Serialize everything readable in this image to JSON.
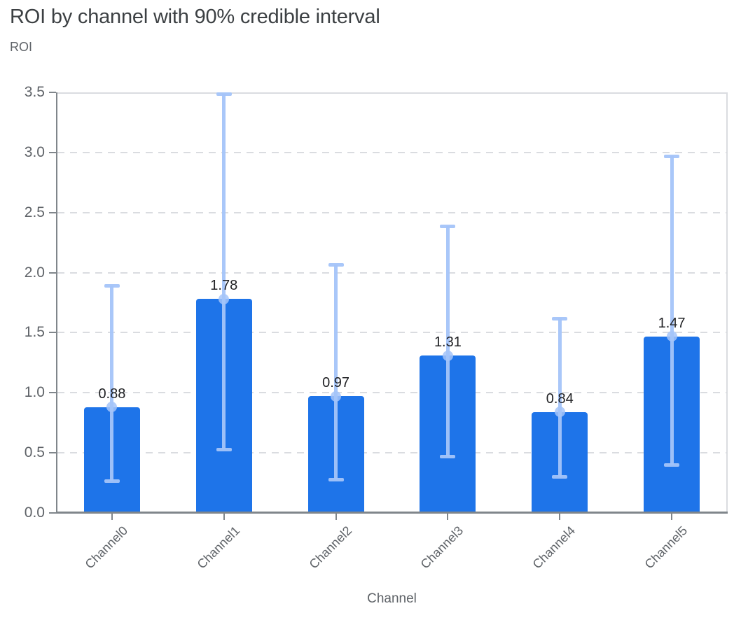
{
  "chart_data": {
    "type": "bar",
    "title": "ROI by channel with 90% credible interval",
    "ylabel": "ROI",
    "xlabel": "Channel",
    "categories": [
      "Channel0",
      "Channel1",
      "Channel2",
      "Channel3",
      "Channel4",
      "Channel5"
    ],
    "series": [
      {
        "name": "ROI",
        "values": [
          0.88,
          1.78,
          0.97,
          1.31,
          0.84,
          1.47
        ]
      }
    ],
    "bar_value_labels": [
      "0.88",
      "1.78",
      "0.97",
      "1.31",
      "0.84",
      "1.47"
    ],
    "error_bars": {
      "label": "90% credible interval",
      "lower": [
        0.27,
        0.53,
        0.28,
        0.47,
        0.3,
        0.4
      ],
      "upper": [
        1.89,
        3.49,
        2.07,
        2.39,
        1.62,
        2.97
      ]
    },
    "ytick_labels": [
      "0.0",
      "0.5",
      "1.0",
      "1.5",
      "2.0",
      "2.5",
      "3.0",
      "3.5"
    ],
    "ylim": [
      0,
      3.5
    ],
    "grid": "horizontal-dashed",
    "legend": "none",
    "colors": {
      "bar": "#1e74e9",
      "error_bar": "#a4c4f9",
      "mean_dot": "#a4c4f9",
      "gridline": "#dadce0",
      "axis_line": "#80868b",
      "tick_label": "#5f6368",
      "value_label": "#202124",
      "title": "#3c4043",
      "background": "#ffffff"
    }
  }
}
